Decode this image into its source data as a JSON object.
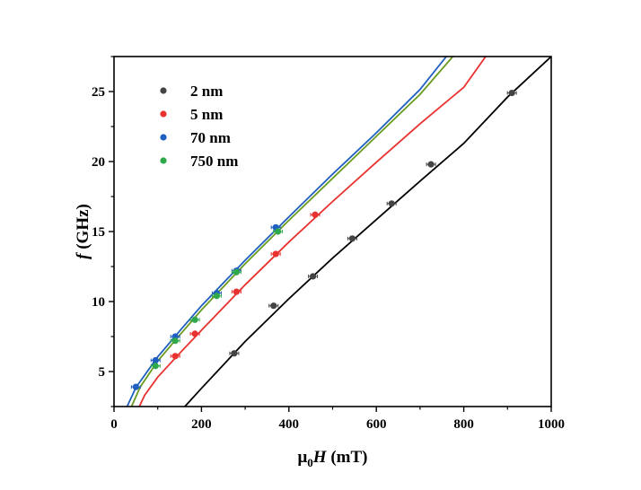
{
  "chart_data": {
    "type": "scatter",
    "xlabel_prefix": "μ",
    "xlabel_sub": "0",
    "xlabel_var": "H",
    "xlabel_unit": " (mT)",
    "ylabel_var": "f",
    "ylabel_unit": " (GHz)",
    "xlim": [
      0,
      1000
    ],
    "ylim": [
      2.5,
      27.5
    ],
    "xticks": [
      0,
      200,
      400,
      600,
      800,
      1000
    ],
    "xtick_labels": [
      "0",
      "200",
      "400",
      "600",
      "800",
      "1000"
    ],
    "yticks": [
      5,
      10,
      15,
      20,
      25
    ],
    "ytick_labels": [
      "5",
      "10",
      "15",
      "20",
      "25"
    ],
    "grid": false,
    "legend_position": "top-left",
    "series": [
      {
        "name": "2 nm",
        "color": "#444444",
        "line_color": "#000000",
        "points": [
          [
            275,
            6.3
          ],
          [
            365,
            9.7
          ],
          [
            455,
            11.8
          ],
          [
            545,
            14.5
          ],
          [
            635,
            17.0
          ],
          [
            725,
            19.8
          ],
          [
            910,
            24.9
          ]
        ],
        "fit": [
          [
            162,
            2.5
          ],
          [
            200,
            3.8
          ],
          [
            300,
            7.15
          ],
          [
            400,
            10.2
          ],
          [
            500,
            13.1
          ],
          [
            600,
            15.85
          ],
          [
            700,
            18.6
          ],
          [
            800,
            21.3
          ],
          [
            900,
            24.6
          ],
          [
            1000,
            27.5
          ]
        ]
      },
      {
        "name": "5 nm",
        "color": "#e8322f",
        "line_color": "#e8322f",
        "points": [
          [
            140,
            6.1
          ],
          [
            185,
            7.7
          ],
          [
            280,
            10.7
          ],
          [
            370,
            13.4
          ],
          [
            460,
            16.2
          ]
        ],
        "fit": [
          [
            58,
            2.5
          ],
          [
            70,
            3.3
          ],
          [
            100,
            4.6
          ],
          [
            150,
            6.3
          ],
          [
            200,
            7.95
          ],
          [
            300,
            11.2
          ],
          [
            400,
            14.25
          ],
          [
            500,
            17.15
          ],
          [
            600,
            19.95
          ],
          [
            700,
            22.7
          ],
          [
            800,
            25.3
          ],
          [
            850,
            27.5
          ]
        ]
      },
      {
        "name": "70 nm",
        "color": "#1f5fbf",
        "line_color": "#1f5fbf",
        "points": [
          [
            50,
            3.9
          ],
          [
            95,
            5.8
          ],
          [
            140,
            7.5
          ],
          [
            235,
            10.6
          ],
          [
            280,
            12.2
          ],
          [
            370,
            15.3
          ]
        ],
        "fit": [
          [
            30,
            2.5
          ],
          [
            50,
            3.85
          ],
          [
            100,
            6.05
          ],
          [
            150,
            7.9
          ],
          [
            200,
            9.7
          ],
          [
            300,
            12.95
          ],
          [
            400,
            16.05
          ],
          [
            500,
            19.1
          ],
          [
            600,
            22.05
          ],
          [
            700,
            25.15
          ],
          [
            760,
            27.5
          ]
        ]
      },
      {
        "name": "750 nm",
        "color": "#2ea84a",
        "line_color": "#6a9a1f",
        "points": [
          [
            95,
            5.4
          ],
          [
            140,
            7.2
          ],
          [
            185,
            8.7
          ],
          [
            235,
            10.4
          ],
          [
            280,
            12.1
          ],
          [
            375,
            15.0
          ]
        ],
        "fit": [
          [
            40,
            2.5
          ],
          [
            60,
            3.9
          ],
          [
            100,
            5.75
          ],
          [
            150,
            7.6
          ],
          [
            200,
            9.4
          ],
          [
            300,
            12.7
          ],
          [
            400,
            15.8
          ],
          [
            500,
            18.8
          ],
          [
            600,
            21.8
          ],
          [
            700,
            24.8
          ],
          [
            775,
            27.5
          ]
        ]
      }
    ]
  }
}
